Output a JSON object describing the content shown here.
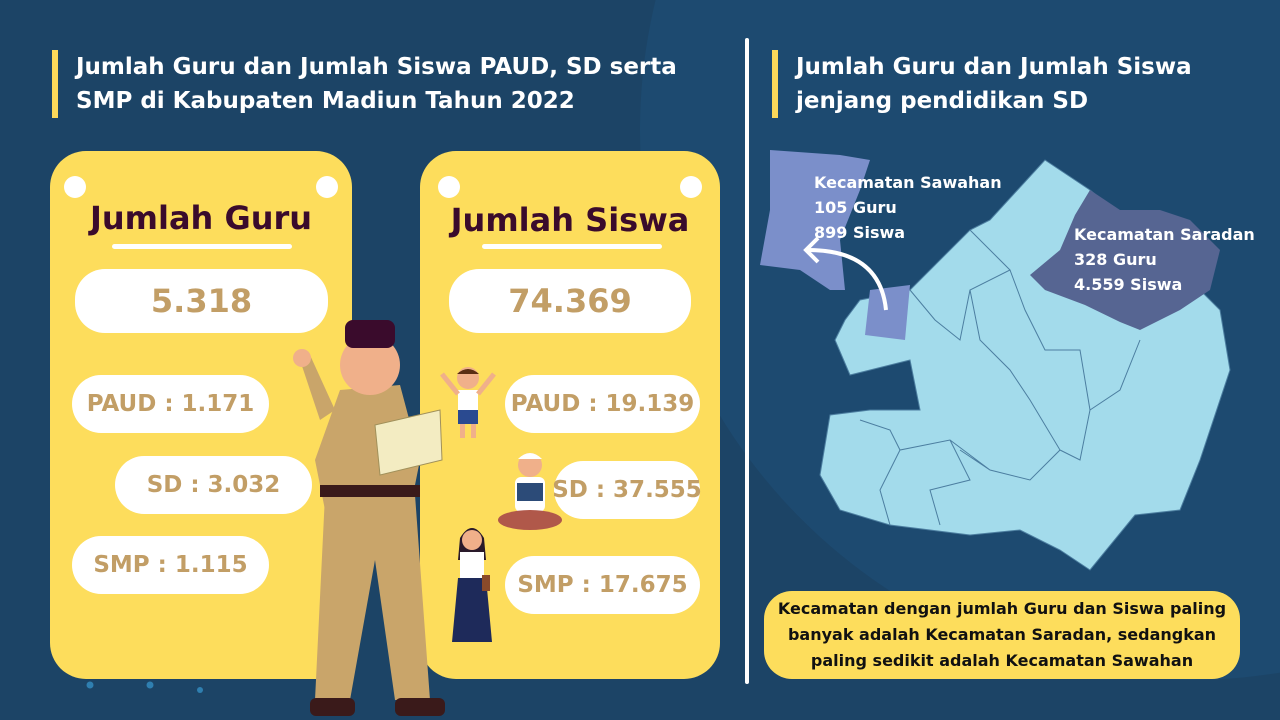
{
  "left": {
    "title_line1": "Jumlah Guru dan Jumlah Siswa PAUD, SD serta",
    "title_line2": "SMP di Kabupaten Madiun Tahun 2022",
    "guru": {
      "heading": "Jumlah Guru",
      "total": "5.318",
      "paud": "PAUD : 1.171",
      "sd": "SD : 3.032",
      "smp": "SMP : 1.115"
    },
    "siswa": {
      "heading": "Jumlah Siswa",
      "total": "74.369",
      "paud": "PAUD : 19.139",
      "sd": "SD : 37.555",
      "smp": "SMP : 17.675"
    }
  },
  "right": {
    "title_line1": "Jumlah Guru dan Jumlah Siswa",
    "title_line2": "jenjang pendidikan SD",
    "sawahan": {
      "name": "Kecamatan Sawahan",
      "guru": "105 Guru",
      "siswa": "899 Siswa"
    },
    "saradan": {
      "name": "Kecamatan Saradan",
      "guru": "328 Guru",
      "siswa": "4.559 Siswa"
    },
    "note": "Kecamatan dengan jumlah Guru dan Siswa paling banyak adalah Kecamatan Saradan, sedangkan paling sedikit adalah Kecamatan Sawahan"
  },
  "colors": {
    "background": "#1c4466",
    "card": "#fddd5c",
    "number": "#c29e66",
    "heading": "#3a0b2c",
    "map": "#a3dbeb",
    "sawahan": "#7b8fca",
    "saradan": "#566592"
  }
}
